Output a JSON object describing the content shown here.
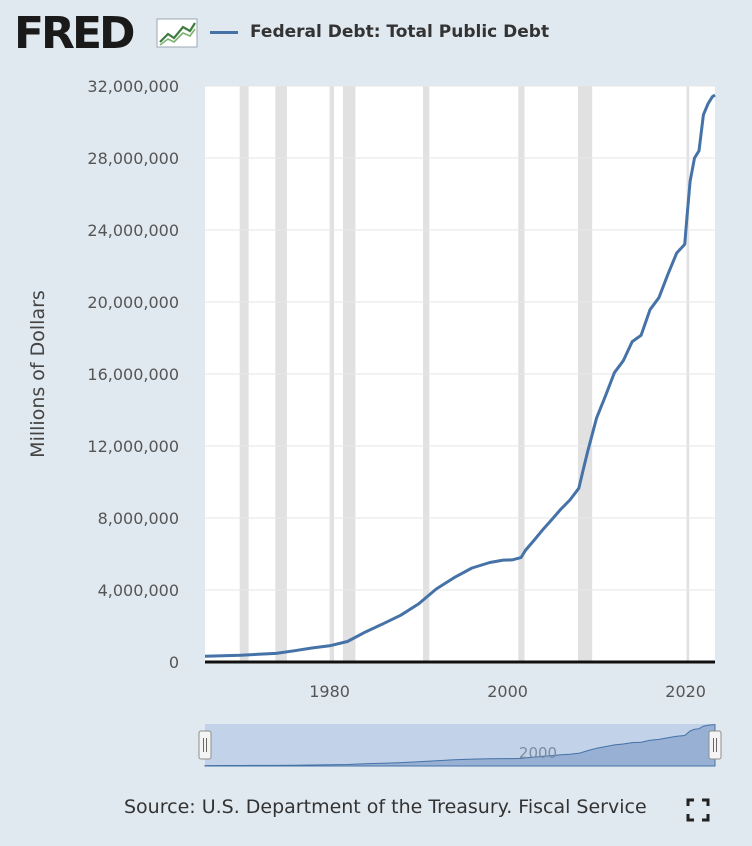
{
  "header": {
    "logo_text": "FRED",
    "logo_mark": "fred-chart-icon",
    "legend_label": "Federal Debt: Total Public Debt",
    "series_color": "#4572a7"
  },
  "chart_data": {
    "type": "line",
    "title": "Federal Debt: Total Public Debt",
    "xlabel": "",
    "ylabel": "Millions of Dollars",
    "xlim": [
      1966,
      2023.3
    ],
    "ylim": [
      0,
      32000000
    ],
    "x_ticks": [
      1980,
      2000,
      2020
    ],
    "x_tick_labels": [
      "1980",
      "2000",
      "2020"
    ],
    "y_ticks": [
      0,
      4000000,
      8000000,
      12000000,
      16000000,
      20000000,
      24000000,
      28000000,
      32000000
    ],
    "y_tick_labels": [
      "0",
      "4,000,000",
      "8,000,000",
      "12,000,000",
      "16,000,000",
      "20,000,000",
      "24,000,000",
      "28,000,000",
      "32,000,000"
    ],
    "recessions": [
      [
        1969.9,
        1970.9
      ],
      [
        1973.9,
        1975.2
      ],
      [
        1980.0,
        1980.5
      ],
      [
        1981.5,
        1982.9
      ],
      [
        1990.5,
        1991.2
      ],
      [
        2001.2,
        2001.9
      ],
      [
        2007.9,
        2009.5
      ],
      [
        2020.1,
        2020.4
      ]
    ],
    "series": [
      {
        "name": "Federal Debt: Total Public Debt",
        "x": [
          1966,
          1968,
          1970,
          1972,
          1974,
          1976,
          1978,
          1980,
          1982,
          1984,
          1986,
          1988,
          1990,
          1992,
          1994,
          1996,
          1998,
          1999.5,
          2000.5,
          2001.5,
          2002,
          2003,
          2004,
          2005,
          2006,
          2007,
          2008,
          2008.5,
          2009,
          2010,
          2011,
          2012,
          2013,
          2014,
          2015,
          2016,
          2017,
          2018,
          2019,
          2019.9,
          2020.2,
          2020.5,
          2021,
          2021.5,
          2022,
          2022.5,
          2023,
          2023.3
        ],
        "values": [
          320000,
          350000,
          380000,
          430000,
          480000,
          620000,
          780000,
          900000,
          1140000,
          1660000,
          2120000,
          2600000,
          3230000,
          4060000,
          4690000,
          5220000,
          5530000,
          5660000,
          5670000,
          5800000,
          6200000,
          6780000,
          7380000,
          7930000,
          8500000,
          9000000,
          9650000,
          10700000,
          11700000,
          13560000,
          14790000,
          16070000,
          16740000,
          17800000,
          18150000,
          19570000,
          20240000,
          21520000,
          22720000,
          23200000,
          25000000,
          26700000,
          28000000,
          28400000,
          30400000,
          31000000,
          31400000,
          31500000
        ]
      }
    ]
  },
  "navigator": {
    "year_label": "2000"
  },
  "footer": {
    "source_text": "Source: U.S. Department of the Treasury. Fiscal Service",
    "fullscreen_icon": "fullscreen-icon"
  }
}
